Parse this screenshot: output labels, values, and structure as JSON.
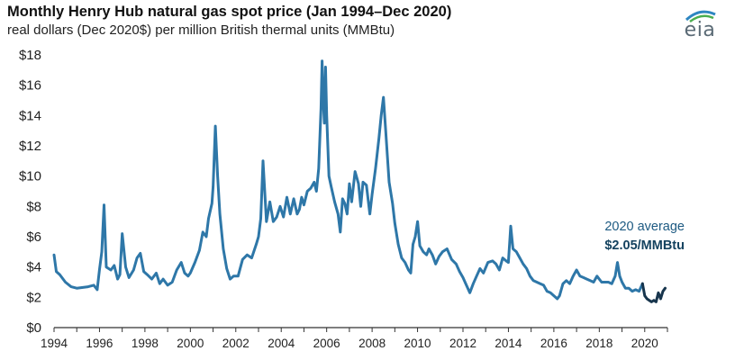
{
  "header": {
    "title": "Monthly Henry Hub natural gas spot price (Jan 1994–Dec 2020)",
    "subtitle": "real dollars (Dec 2020$) per million British thermal units (MMBtu)",
    "logo_text": "eia"
  },
  "annotation": {
    "line1": "2020 average",
    "line2": "$2.05/MMBtu"
  },
  "colors": {
    "series": "#2e77a8",
    "highlight": "#17354d",
    "logo_arc_blue": "#2e86c1",
    "logo_arc_green": "#4bae4f",
    "axis": "#333333"
  },
  "chart_data": {
    "type": "line",
    "title": "Monthly Henry Hub natural gas spot price (Jan 1994–Dec 2020)",
    "subtitle": "real dollars (Dec 2020$) per million British thermal units (MMBtu)",
    "xlabel": "",
    "ylabel": "",
    "ylim": [
      0,
      18
    ],
    "xlim": [
      1994,
      2021
    ],
    "grid": false,
    "y_ticks": [
      "$0",
      "$2",
      "$4",
      "$6",
      "$8",
      "$10",
      "$12",
      "$14",
      "$16",
      "$18"
    ],
    "x_ticks": [
      "1994",
      "1996",
      "1998",
      "2000",
      "2002",
      "2004",
      "2006",
      "2008",
      "2010",
      "2012",
      "2014",
      "2016",
      "2018",
      "2020"
    ],
    "series": [
      {
        "x": [
          1994.0,
          1994.1,
          1994.25,
          1994.5,
          1994.75,
          1995.0,
          1995.5,
          1995.75,
          1995.9,
          1996.0,
          1996.1,
          1996.2,
          1996.3,
          1996.5,
          1996.65,
          1996.8,
          1996.9,
          1997.0,
          1997.15,
          1997.3,
          1997.5,
          1997.65,
          1997.8,
          1997.95,
          1998.1,
          1998.3,
          1998.5,
          1998.65,
          1998.8,
          1999.0,
          1999.2,
          1999.4,
          1999.6,
          1999.75,
          1999.9,
          2000.0,
          2000.2,
          2000.4,
          2000.55,
          2000.7,
          2000.8,
          2000.95,
          2001.0,
          2001.1,
          2001.2,
          2001.3,
          2001.45,
          2001.6,
          2001.75,
          2001.9,
          2002.1,
          2002.3,
          2002.5,
          2002.7,
          2002.9,
          2003.0,
          2003.1,
          2003.2,
          2003.35,
          2003.5,
          2003.65,
          2003.8,
          2003.95,
          2004.1,
          2004.25,
          2004.4,
          2004.55,
          2004.7,
          2004.8,
          2004.9,
          2005.0,
          2005.15,
          2005.3,
          2005.45,
          2005.55,
          2005.65,
          2005.75,
          2005.8,
          2005.85,
          2005.9,
          2005.95,
          2006.0,
          2006.1,
          2006.2,
          2006.35,
          2006.5,
          2006.6,
          2006.7,
          2006.8,
          2006.9,
          2007.0,
          2007.1,
          2007.25,
          2007.4,
          2007.5,
          2007.6,
          2007.75,
          2007.9,
          2008.0,
          2008.15,
          2008.3,
          2008.4,
          2008.5,
          2008.6,
          2008.75,
          2008.9,
          2009.0,
          2009.15,
          2009.3,
          2009.45,
          2009.6,
          2009.7,
          2009.8,
          2009.9,
          2010.0,
          2010.1,
          2010.25,
          2010.4,
          2010.5,
          2010.65,
          2010.8,
          2010.95,
          2011.1,
          2011.3,
          2011.5,
          2011.7,
          2011.85,
          2012.0,
          2012.15,
          2012.3,
          2012.45,
          2012.6,
          2012.75,
          2012.9,
          2013.1,
          2013.3,
          2013.45,
          2013.6,
          2013.75,
          2013.9,
          2014.0,
          2014.1,
          2014.2,
          2014.35,
          2014.5,
          2014.65,
          2014.8,
          2014.95,
          2015.1,
          2015.25,
          2015.4,
          2015.55,
          2015.7,
          2015.85,
          2016.0,
          2016.15,
          2016.25,
          2016.4,
          2016.55,
          2016.7,
          2016.85,
          2017.0,
          2017.15,
          2017.3,
          2017.45,
          2017.6,
          2017.75,
          2017.9,
          2018.0,
          2018.1,
          2018.25,
          2018.4,
          2018.55,
          2018.7,
          2018.8,
          2018.9,
          2019.0,
          2019.15,
          2019.3,
          2019.45,
          2019.6,
          2019.75,
          2019.9
        ],
        "values": [
          4.8,
          3.7,
          3.5,
          3.0,
          2.7,
          2.6,
          2.7,
          2.8,
          2.5,
          3.8,
          5.0,
          8.1,
          4.0,
          3.8,
          4.1,
          3.2,
          3.5,
          6.2,
          4.0,
          3.3,
          3.8,
          4.6,
          4.9,
          3.7,
          3.5,
          3.2,
          3.6,
          2.9,
          3.2,
          2.8,
          3.0,
          3.8,
          4.3,
          3.6,
          3.4,
          3.6,
          4.3,
          5.1,
          6.3,
          6.0,
          7.2,
          8.2,
          9.3,
          13.3,
          10.0,
          7.5,
          5.2,
          3.9,
          3.2,
          3.4,
          3.4,
          4.5,
          4.8,
          4.6,
          5.5,
          6.0,
          7.2,
          11.0,
          7.0,
          8.3,
          7.0,
          7.3,
          8.0,
          7.3,
          8.6,
          7.5,
          8.5,
          7.5,
          7.8,
          8.6,
          8.1,
          9.0,
          9.2,
          9.6,
          9.0,
          10.5,
          14.5,
          17.6,
          15.0,
          13.5,
          17.2,
          14.0,
          10.0,
          9.3,
          8.3,
          7.5,
          6.3,
          8.5,
          8.2,
          7.5,
          9.5,
          8.3,
          10.3,
          9.5,
          8.0,
          9.6,
          9.4,
          7.5,
          8.8,
          10.5,
          12.5,
          14.0,
          15.2,
          13.0,
          9.6,
          8.2,
          6.9,
          5.5,
          4.6,
          4.3,
          3.8,
          3.6,
          5.5,
          6.0,
          7.0,
          5.4,
          5.0,
          4.8,
          5.2,
          4.8,
          4.2,
          4.7,
          5.0,
          5.2,
          4.5,
          4.2,
          3.7,
          3.3,
          2.8,
          2.3,
          2.9,
          3.4,
          3.9,
          3.6,
          4.3,
          4.4,
          4.2,
          3.8,
          4.6,
          4.4,
          4.3,
          6.7,
          5.2,
          5.0,
          4.6,
          4.2,
          3.9,
          3.4,
          3.1,
          3.0,
          2.9,
          2.8,
          2.4,
          2.3,
          2.1,
          1.9,
          2.1,
          2.9,
          3.1,
          2.9,
          3.4,
          3.8,
          3.4,
          3.3,
          3.2,
          3.1,
          3.0,
          3.4,
          3.2,
          3.0,
          3.0,
          3.0,
          2.9,
          3.4,
          4.3,
          3.4,
          3.0,
          2.6,
          2.6,
          2.4,
          2.5,
          2.4,
          2.9
        ]
      },
      {
        "x": [
          2019.9,
          2020.0,
          2020.1,
          2020.2,
          2020.3,
          2020.4,
          2020.5,
          2020.6,
          2020.7,
          2020.8,
          2020.9
        ],
        "values": [
          2.9,
          2.1,
          1.9,
          1.8,
          1.7,
          1.8,
          1.7,
          2.3,
          1.9,
          2.4,
          2.6
        ]
      }
    ]
  }
}
